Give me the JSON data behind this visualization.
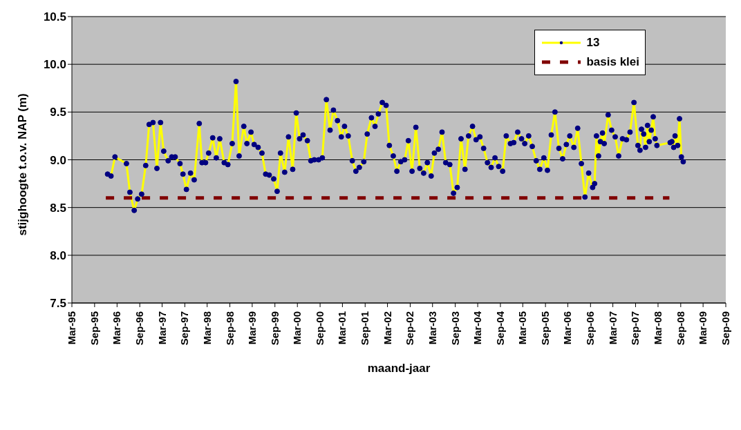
{
  "chart_data": {
    "type": "line",
    "xlabel": "maand-jaar",
    "ylabel": "stijghoogte t.o.v. NAP (m)",
    "ylim": [
      7.5,
      10.5
    ],
    "yticks": [
      7.5,
      {
        "value": 8,
        "label": "8.0"
      },
      8.5,
      {
        "value": 9,
        "label": "9.0"
      },
      9.5,
      {
        "value": 10,
        "label": "10.0"
      },
      10.5
    ],
    "xlim": [
      "1995-03-01",
      "2009-09-01"
    ],
    "xticks": [
      {
        "value": "1995-03-01",
        "label": "Mar-95"
      },
      {
        "value": "1995-09-01",
        "label": "Sep-95"
      },
      {
        "value": "1996-03-01",
        "label": "Mar-96"
      },
      {
        "value": "1996-09-01",
        "label": "Sep-96"
      },
      {
        "value": "1997-03-01",
        "label": "Mar-97"
      },
      {
        "value": "1997-09-01",
        "label": "Sep-97"
      },
      {
        "value": "1998-03-01",
        "label": "Mar-98"
      },
      {
        "value": "1998-09-01",
        "label": "Sep-98"
      },
      {
        "value": "1999-03-01",
        "label": "Mar-99"
      },
      {
        "value": "1999-09-01",
        "label": "Sep-99"
      },
      {
        "value": "2000-03-01",
        "label": "Mar-00"
      },
      {
        "value": "2000-09-01",
        "label": "Sep-00"
      },
      {
        "value": "2001-03-01",
        "label": "Mar-01"
      },
      {
        "value": "2001-09-01",
        "label": "Sep-01"
      },
      {
        "value": "2002-03-01",
        "label": "Mar-02"
      },
      {
        "value": "2002-09-01",
        "label": "Sep-02"
      },
      {
        "value": "2003-03-01",
        "label": "Mar-03"
      },
      {
        "value": "2003-09-01",
        "label": "Sep-03"
      },
      {
        "value": "2004-03-01",
        "label": "Mar-04"
      },
      {
        "value": "2004-09-01",
        "label": "Sep-04"
      },
      {
        "value": "2005-03-01",
        "label": "Mar-05"
      },
      {
        "value": "2005-09-01",
        "label": "Sep-05"
      },
      {
        "value": "2006-03-01",
        "label": "Mar-06"
      },
      {
        "value": "2006-09-01",
        "label": "Sep-06"
      },
      {
        "value": "2007-03-01",
        "label": "Mar-07"
      },
      {
        "value": "2007-09-01",
        "label": "Sep-07"
      },
      {
        "value": "2008-03-01",
        "label": "Mar-08"
      },
      {
        "value": "2008-09-01",
        "label": "Sep-08"
      },
      {
        "value": "2009-03-01",
        "label": "Mar-09"
      },
      {
        "value": "2009-09-01",
        "label": "Sep-09"
      }
    ],
    "grid": "y",
    "legend": "top right",
    "series": [
      {
        "name": "13",
        "type": "line",
        "color": "#ffff00",
        "marker": "circle",
        "line_style": "solid",
        "x": [
          "1995-12-15",
          "1996-01-12",
          "1996-02-13",
          "1996-05-16",
          "1996-06-13",
          "1996-07-18",
          "1996-08-15",
          "1996-09-16",
          "1996-10-19",
          "1996-11-16",
          "1996-12-17",
          "1997-01-18",
          "1997-02-16",
          "1997-03-14",
          "1997-04-19",
          "1997-05-18",
          "1997-06-15",
          "1997-07-24",
          "1997-08-17",
          "1997-09-14",
          "1997-10-17",
          "1997-11-16",
          "1997-12-27",
          "1998-01-18",
          "1998-02-16",
          "1998-03-13",
          "1998-04-15",
          "1998-05-14",
          "1998-06-11",
          "1998-07-17",
          "1998-08-16",
          "1998-09-20",
          "1998-10-21",
          "1998-11-15",
          "1998-12-23",
          "1999-01-17",
          "1999-02-19",
          "1999-03-17",
          "1999-04-18",
          "1999-05-19",
          "1999-06-18",
          "1999-07-17",
          "1999-08-22",
          "1999-09-19",
          "1999-10-16",
          "1999-11-19",
          "1999-12-20",
          "2000-01-23",
          "2000-02-21",
          "2000-03-19",
          "2000-04-16",
          "2000-05-21",
          "2000-06-18",
          "2000-07-16",
          "2000-08-20",
          "2000-09-19",
          "2000-10-22",
          "2000-11-21",
          "2000-12-18",
          "2001-01-20",
          "2001-02-20",
          "2001-03-18",
          "2001-04-17",
          "2001-05-20",
          "2001-06-18",
          "2001-07-16",
          "2001-08-21",
          "2001-09-18",
          "2001-10-22",
          "2001-11-20",
          "2001-12-17",
          "2002-01-18",
          "2002-02-18",
          "2002-03-16",
          "2002-04-17",
          "2002-05-16",
          "2002-06-17",
          "2002-07-18",
          "2002-08-17",
          "2002-09-16",
          "2002-10-17",
          "2002-11-18",
          "2002-12-19",
          "2003-01-18",
          "2003-02-18",
          "2003-03-16",
          "2003-04-17",
          "2003-05-17",
          "2003-06-16",
          "2003-07-19",
          "2003-08-18",
          "2003-09-17",
          "2003-10-18",
          "2003-11-19",
          "2003-12-18",
          "2004-01-19",
          "2004-02-17",
          "2004-03-19",
          "2004-04-18",
          "2004-05-19",
          "2004-06-18",
          "2004-07-19",
          "2004-08-18",
          "2004-09-19",
          "2004-10-18",
          "2004-11-21",
          "2004-12-18",
          "2005-01-19",
          "2005-02-19",
          "2005-03-17",
          "2005-04-18",
          "2005-05-17",
          "2005-06-18",
          "2005-07-17",
          "2005-08-19",
          "2005-09-17",
          "2005-10-18",
          "2005-11-17",
          "2005-12-19",
          "2006-01-18",
          "2006-02-17",
          "2006-03-17",
          "2006-04-19",
          "2006-05-20",
          "2006-06-19",
          "2006-07-18",
          "2006-08-17",
          "2006-09-18",
          "2006-10-04",
          "2006-10-19",
          "2006-11-05",
          "2006-11-20",
          "2006-12-07",
          "2006-12-21",
          "2007-01-22",
          "2007-02-19",
          "2007-03-20",
          "2007-04-17",
          "2007-05-18",
          "2007-06-19",
          "2007-07-18",
          "2007-08-19",
          "2007-09-20",
          "2007-10-07",
          "2007-10-19",
          "2007-11-06",
          "2007-11-21",
          "2007-12-07",
          "2007-12-21",
          "2008-01-06",
          "2008-01-22",
          "2008-02-07",
          "2008-02-21",
          "2008-06-07",
          "2008-06-21",
          "2008-07-06",
          "2008-07-17",
          "2008-08-07",
          "2008-08-22",
          "2008-09-06",
          "2008-09-21"
        ],
        "values": [
          8.85,
          8.83,
          9.03,
          8.96,
          8.66,
          8.47,
          8.59,
          8.64,
          8.94,
          9.37,
          9.39,
          8.91,
          9.39,
          9.09,
          8.99,
          9.03,
          9.03,
          8.96,
          8.85,
          8.69,
          8.86,
          8.79,
          9.38,
          8.97,
          8.97,
          9.07,
          9.23,
          9.02,
          9.22,
          8.97,
          8.95,
          9.17,
          9.82,
          9.04,
          9.35,
          9.17,
          9.29,
          9.16,
          9.13,
          9.07,
          8.85,
          8.84,
          8.8,
          8.67,
          9.07,
          8.87,
          9.24,
          8.9,
          9.49,
          9.22,
          9.26,
          9.2,
          8.99,
          9.0,
          9.0,
          9.02,
          9.63,
          9.31,
          9.52,
          9.41,
          9.24,
          9.35,
          9.25,
          8.99,
          8.88,
          8.92,
          8.98,
          9.27,
          9.44,
          9.35,
          9.48,
          9.6,
          9.57,
          9.15,
          9.04,
          8.88,
          8.98,
          9.0,
          9.2,
          8.88,
          9.34,
          8.91,
          8.86,
          8.97,
          8.83,
          9.07,
          9.11,
          9.29,
          8.97,
          8.95,
          8.65,
          8.71,
          9.22,
          8.9,
          9.25,
          9.35,
          9.21,
          9.24,
          9.12,
          8.97,
          8.92,
          9.02,
          8.93,
          8.88,
          9.25,
          9.17,
          9.18,
          9.29,
          9.22,
          9.17,
          9.25,
          9.14,
          8.99,
          8.9,
          9.02,
          8.89,
          9.26,
          9.5,
          9.12,
          9.01,
          9.16,
          9.25,
          9.13,
          9.33,
          8.96,
          8.61,
          8.86,
          8.71,
          8.75,
          9.25,
          9.04,
          9.19,
          9.28,
          9.17,
          9.47,
          9.31,
          9.24,
          9.04,
          9.22,
          9.21,
          9.29,
          9.6,
          9.15,
          9.1,
          9.32,
          9.27,
          9.13,
          9.36,
          9.19,
          9.31,
          9.45,
          9.22,
          9.15,
          9.18,
          9.19,
          9.13,
          9.25,
          9.15,
          9.43,
          9.03,
          8.98
        ]
      },
      {
        "name": "basis klei",
        "type": "line",
        "color": "#800000",
        "marker": "none",
        "line_style": "dashed",
        "x": [
          "1995-12-01",
          "2008-06-01"
        ],
        "values": [
          8.6,
          8.6
        ]
      }
    ]
  }
}
